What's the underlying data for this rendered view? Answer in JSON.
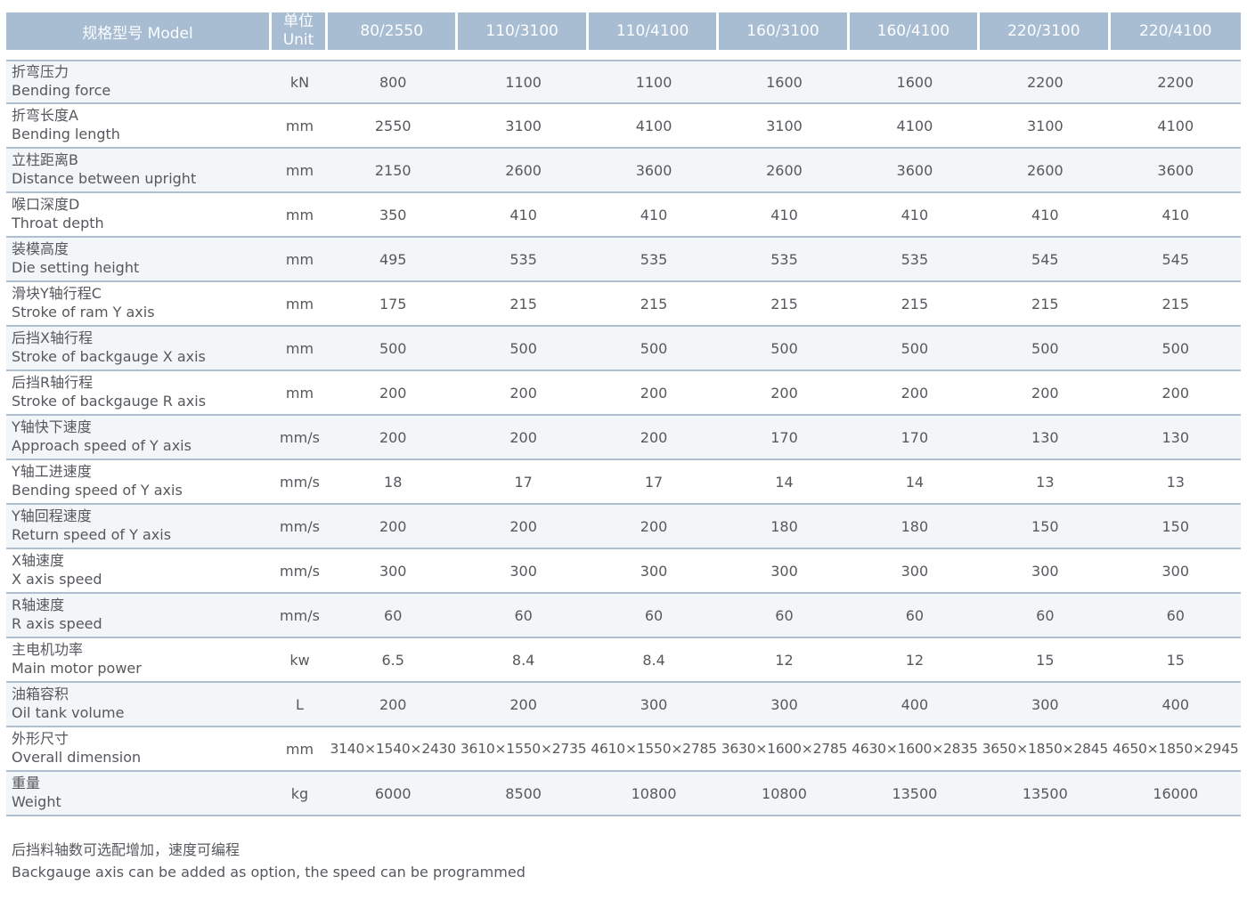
{
  "table": {
    "header": {
      "model_label": "规格型号  Model",
      "unit_label_cn": "单位",
      "unit_label_en": "Unit",
      "models": [
        "80/2550",
        "110/3100",
        "110/4100",
        "160/3100",
        "160/4100",
        "220/3100",
        "220/4100"
      ]
    },
    "rows": [
      {
        "cn": "折弯压力",
        "en": "Bending force",
        "unit": "kN",
        "values": [
          "800",
          "1100",
          "1100",
          "1600",
          "1600",
          "2200",
          "2200"
        ]
      },
      {
        "cn": "折弯长度A",
        "en": "Bending length",
        "unit": "mm",
        "values": [
          "2550",
          "3100",
          "4100",
          "3100",
          "4100",
          "3100",
          "4100"
        ]
      },
      {
        "cn": "立柱距离B",
        "en": "Distance between upright",
        "unit": "mm",
        "values": [
          "2150",
          "2600",
          "3600",
          "2600",
          "3600",
          "2600",
          "3600"
        ]
      },
      {
        "cn": "喉口深度D",
        "en": "Throat depth",
        "unit": "mm",
        "values": [
          "350",
          "410",
          "410",
          "410",
          "410",
          "410",
          "410"
        ]
      },
      {
        "cn": "装模高度",
        "en": "Die setting height",
        "unit": "mm",
        "values": [
          "495",
          "535",
          "535",
          "535",
          "535",
          "545",
          "545"
        ]
      },
      {
        "cn": "滑块Y轴行程C",
        "en": "Stroke of ram Y axis",
        "unit": "mm",
        "values": [
          "175",
          "215",
          "215",
          "215",
          "215",
          "215",
          "215"
        ]
      },
      {
        "cn": "后挡X轴行程",
        "en": "Stroke of backgauge X axis",
        "unit": "mm",
        "values": [
          "500",
          "500",
          "500",
          "500",
          "500",
          "500",
          "500"
        ]
      },
      {
        "cn": "后挡R轴行程",
        "en": "Stroke of backgauge R axis",
        "unit": "mm",
        "values": [
          "200",
          "200",
          "200",
          "200",
          "200",
          "200",
          "200"
        ]
      },
      {
        "cn": "Y轴快下速度",
        "en": "Approach speed of Y axis",
        "unit": "mm/s",
        "values": [
          "200",
          "200",
          "200",
          "170",
          "170",
          "130",
          "130"
        ]
      },
      {
        "cn": "Y轴工进速度",
        "en": "Bending speed of Y axis",
        "unit": "mm/s",
        "values": [
          "18",
          "17",
          "17",
          "14",
          "14",
          "13",
          "13"
        ]
      },
      {
        "cn": "Y轴回程速度",
        "en": "Return speed of Y axis",
        "unit": "mm/s",
        "values": [
          "200",
          "200",
          "200",
          "180",
          "180",
          "150",
          "150"
        ]
      },
      {
        "cn": "X轴速度",
        "en": "X axis speed",
        "unit": "mm/s",
        "values": [
          "300",
          "300",
          "300",
          "300",
          "300",
          "300",
          "300"
        ]
      },
      {
        "cn": "R轴速度",
        "en": "R axis speed",
        "unit": "mm/s",
        "values": [
          "60",
          "60",
          "60",
          "60",
          "60",
          "60",
          "60"
        ]
      },
      {
        "cn": "主电机功率",
        "en": "Main motor power",
        "unit": "kw",
        "values": [
          "6.5",
          "8.4",
          "8.4",
          "12",
          "12",
          "15",
          "15"
        ]
      },
      {
        "cn": "油箱容积",
        "en": "Oil tank volume",
        "unit": "L",
        "values": [
          "200",
          "200",
          "300",
          "300",
          "400",
          "300",
          "400"
        ]
      },
      {
        "cn": "外形尺寸",
        "en": "Overall dimension",
        "unit": "mm",
        "values": [
          "3140×1540×2430",
          "3610×1550×2735",
          "4610×1550×2785",
          "3630×1600×2785",
          "4630×1600×2835",
          "3650×1850×2845",
          "4650×1850×2945"
        ]
      },
      {
        "cn": "重量",
        "en": "Weight",
        "unit": "kg",
        "values": [
          "6000",
          "8500",
          "10800",
          "10800",
          "13500",
          "13500",
          "16000"
        ]
      }
    ]
  },
  "footnote": {
    "cn": "后挡料轴数可选配增加，速度可编程",
    "en": "Backgauge axis can be added as option, the speed can be programmed"
  },
  "colors": {
    "header_bg": "#a8bcd2",
    "header_text": "#fdfeff",
    "row_alt_bg": "#f3f6f9",
    "row_bg": "#ffffff",
    "separator": "#aec0cf",
    "body_text": "#55585c"
  }
}
